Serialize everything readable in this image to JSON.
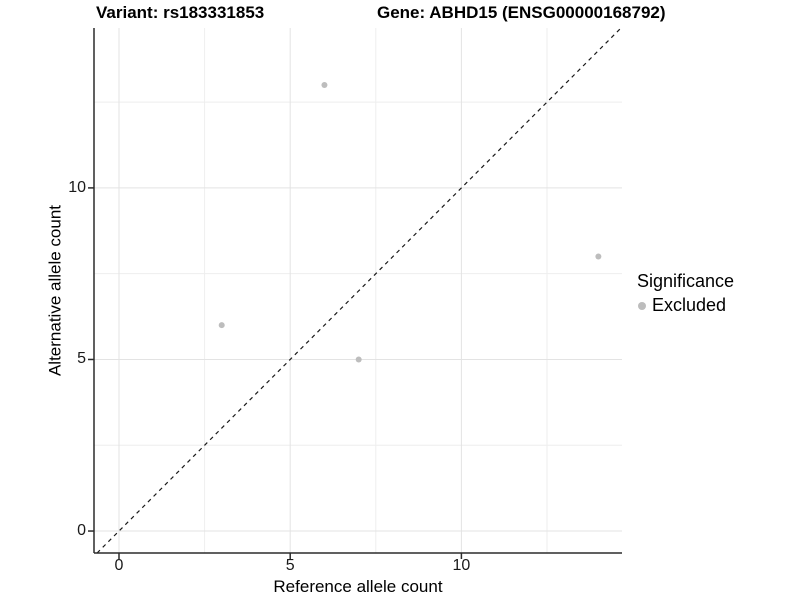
{
  "chart_data": {
    "type": "scatter",
    "title_left": "Variant: rs183331853",
    "title_right": "Gene: ABHD15 (ENSG00000168792)",
    "xlabel": "Reference allele count",
    "ylabel": "Alternative allele count",
    "xlim": [
      -0.73,
      14.69
    ],
    "ylim": [
      -0.64,
      14.66
    ],
    "x_ticks": [
      0,
      5,
      10
    ],
    "y_ticks": [
      0,
      5,
      10
    ],
    "x_minor_ticks": [
      2.5,
      7.5,
      12.5
    ],
    "y_minor_ticks": [
      2.5,
      7.5,
      12.5
    ],
    "grid": true,
    "points": [
      {
        "x": 6,
        "y": 13,
        "series": "Excluded"
      },
      {
        "x": 3,
        "y": 6,
        "series": "Excluded"
      },
      {
        "x": 7,
        "y": 5,
        "series": "Excluded"
      },
      {
        "x": 14,
        "y": 8,
        "series": "Excluded"
      }
    ],
    "reference_line": {
      "kind": "identity",
      "style": "dashed"
    },
    "legend": {
      "title": "Significance",
      "position": "right",
      "items": [
        {
          "label": "Excluded",
          "color": "#bdbdbd"
        }
      ]
    }
  },
  "colors": {
    "point": "#bdbdbd",
    "grid_major": "#e3e3e3",
    "grid_minor": "#eeeeee",
    "axis": "#2b2b2b",
    "dashed_line": "#1a1a1a",
    "background": "#ffffff"
  }
}
